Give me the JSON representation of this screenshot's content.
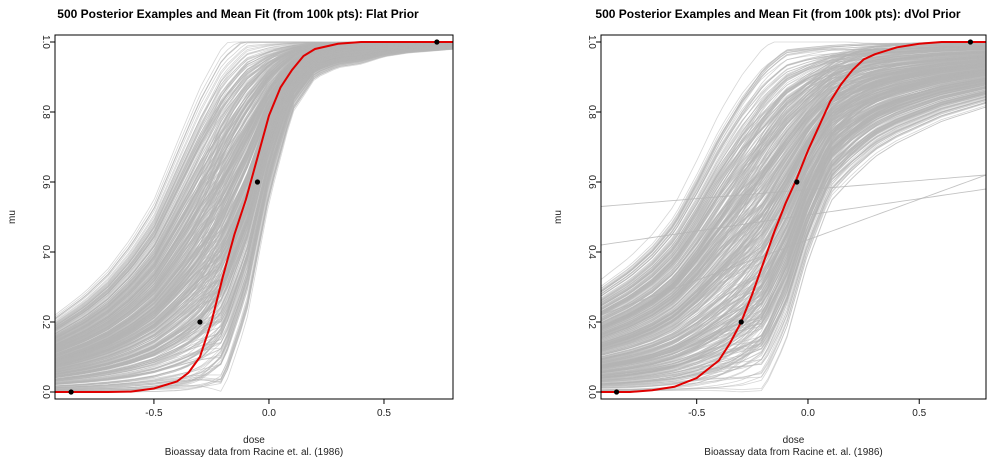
{
  "chart_data": [
    {
      "type": "line",
      "title": "500 Posterior Examples and Mean Fit (from 100k pts): Flat Prior",
      "xlabel": "dose",
      "ylabel": "mu",
      "subtitle": "Bioassay data from Racine et. al. (1986)",
      "xlim": [
        -0.93,
        0.8
      ],
      "ylim": [
        -0.02,
        1.02
      ],
      "xticks": [
        -0.5,
        0.0,
        0.5
      ],
      "xtick_labels": [
        "-0.5",
        "0.0",
        "0.5"
      ],
      "yticks": [
        0.0,
        0.2,
        0.4,
        0.6,
        0.8,
        1.0
      ],
      "ytick_labels": [
        "0.0",
        "0.2",
        "0.4",
        "0.6",
        "0.8",
        "1.0"
      ],
      "grid": false,
      "series": [
        {
          "role": "posterior-samples",
          "color": "#b4b4b4",
          "count": 500,
          "x": [
            -0.93,
            -0.8,
            -0.7,
            -0.6,
            -0.5,
            -0.4,
            -0.3,
            -0.2,
            -0.1,
            0.0,
            0.1,
            0.2,
            0.3,
            0.4,
            0.5,
            0.6,
            0.7,
            0.8
          ],
          "band_lower": [
            0.0,
            0.0,
            0.0,
            0.0,
            0.0,
            0.0,
            0.0,
            0.0,
            0.2,
            0.55,
            0.8,
            0.9,
            0.93,
            0.94,
            0.96,
            0.97,
            0.975,
            0.98
          ],
          "band_upper": [
            0.2,
            0.26,
            0.32,
            0.4,
            0.5,
            0.65,
            0.8,
            0.93,
            0.995,
            1.0,
            1.0,
            1.0,
            1.0,
            1.0,
            1.0,
            1.0,
            1.0,
            1.0
          ]
        },
        {
          "role": "mean-fit",
          "color": "#e00000",
          "x": [
            -0.93,
            -0.8,
            -0.7,
            -0.6,
            -0.5,
            -0.4,
            -0.35,
            -0.3,
            -0.25,
            -0.2,
            -0.15,
            -0.1,
            -0.05,
            0.0,
            0.05,
            0.1,
            0.15,
            0.2,
            0.3,
            0.4,
            0.5,
            0.6,
            0.7,
            0.8
          ],
          "y": [
            0.0,
            0.0,
            0.0,
            0.001,
            0.01,
            0.03,
            0.055,
            0.1,
            0.2,
            0.33,
            0.45,
            0.55,
            0.67,
            0.79,
            0.87,
            0.92,
            0.96,
            0.98,
            0.995,
            1.0,
            1.0,
            1.0,
            1.0,
            1.0
          ]
        }
      ],
      "observations": {
        "color": "#000000",
        "x": [
          -0.86,
          -0.3,
          -0.05,
          0.73
        ],
        "y": [
          0.0,
          0.2,
          0.6,
          1.0
        ]
      }
    },
    {
      "type": "line",
      "title": "500 Posterior Examples and Mean Fit (from 100k pts): dVol Prior",
      "xlabel": "dose",
      "ylabel": "mu",
      "subtitle": "Bioassay data from Racine et. al. (1986)",
      "xlim": [
        -0.93,
        0.8
      ],
      "ylim": [
        -0.02,
        1.02
      ],
      "xticks": [
        -0.5,
        0.0,
        0.5
      ],
      "xtick_labels": [
        "-0.5",
        "0.0",
        "0.5"
      ],
      "yticks": [
        0.0,
        0.2,
        0.4,
        0.6,
        0.8,
        1.0
      ],
      "ytick_labels": [
        "0.0",
        "0.2",
        "0.4",
        "0.6",
        "0.8",
        "1.0"
      ],
      "grid": false,
      "series": [
        {
          "role": "posterior-samples",
          "color": "#b4b4b4",
          "count": 500,
          "x": [
            -0.93,
            -0.8,
            -0.7,
            -0.6,
            -0.5,
            -0.4,
            -0.3,
            -0.2,
            -0.1,
            0.0,
            0.1,
            0.2,
            0.3,
            0.4,
            0.5,
            0.6,
            0.7,
            0.8
          ],
          "band_lower": [
            0.0,
            0.0,
            0.0,
            0.0,
            0.0,
            0.0,
            0.0,
            0.01,
            0.15,
            0.38,
            0.55,
            0.62,
            0.68,
            0.72,
            0.75,
            0.78,
            0.8,
            0.82
          ],
          "band_upper": [
            0.3,
            0.36,
            0.42,
            0.5,
            0.62,
            0.75,
            0.86,
            0.95,
            1.0,
            1.0,
            1.0,
            1.0,
            1.0,
            1.0,
            1.0,
            1.0,
            1.0,
            1.0
          ]
        },
        {
          "role": "mean-fit",
          "color": "#e00000",
          "x": [
            -0.93,
            -0.8,
            -0.7,
            -0.6,
            -0.5,
            -0.4,
            -0.35,
            -0.3,
            -0.25,
            -0.2,
            -0.15,
            -0.1,
            -0.05,
            0.0,
            0.05,
            0.1,
            0.15,
            0.2,
            0.25,
            0.3,
            0.4,
            0.5,
            0.6,
            0.7,
            0.8
          ],
          "y": [
            0.0,
            0.0,
            0.005,
            0.015,
            0.04,
            0.09,
            0.14,
            0.2,
            0.28,
            0.37,
            0.46,
            0.54,
            0.61,
            0.69,
            0.76,
            0.83,
            0.88,
            0.92,
            0.95,
            0.965,
            0.985,
            0.995,
            1.0,
            1.0,
            1.0
          ]
        }
      ],
      "observations": {
        "color": "#000000",
        "x": [
          -0.86,
          -0.3,
          -0.05,
          0.73
        ],
        "y": [
          0.0,
          0.2,
          0.6,
          1.0
        ]
      }
    }
  ]
}
